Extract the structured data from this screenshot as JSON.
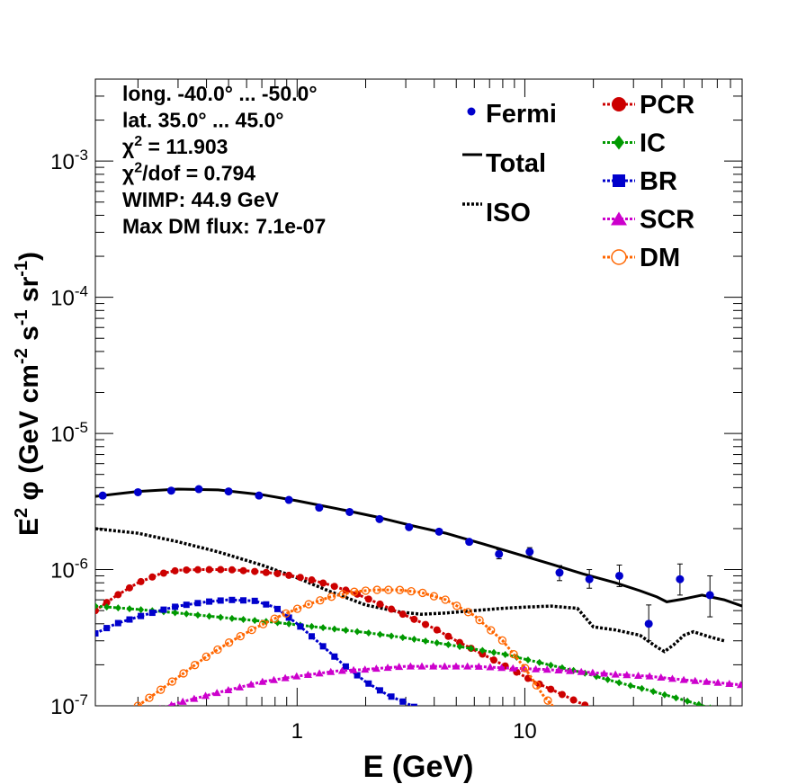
{
  "chart_data": {
    "type": "line",
    "xlabel": "E (GeV)",
    "ylabel_parts": [
      "E",
      "2",
      " φ (GeV cm",
      "-2",
      " s",
      "-1",
      " sr",
      "-1",
      ")"
    ],
    "x_scale": "log",
    "y_scale": "log",
    "xlim": [
      0.13,
      90
    ],
    "ylim": [
      1e-07,
      0.004
    ],
    "x_ticks": [
      {
        "value": 1,
        "label": "1"
      },
      {
        "value": 10,
        "label": "10"
      }
    ],
    "y_ticks": [
      {
        "value": 1e-07,
        "base": "10",
        "exp": "-7"
      },
      {
        "value": 1e-06,
        "base": "10",
        "exp": "-6"
      },
      {
        "value": 1e-05,
        "base": "10",
        "exp": "-5"
      },
      {
        "value": 0.0001,
        "base": "10",
        "exp": "-4"
      },
      {
        "value": 0.001,
        "base": "10",
        "exp": "-3"
      }
    ],
    "info_lines": [
      {
        "text": "long. -40.0° ... -50.0°"
      },
      {
        "text": "lat. 35.0° ... 45.0°"
      },
      {
        "pre": "χ",
        "sup": "2",
        "text": " = 11.903"
      },
      {
        "pre": "χ",
        "sup": "2",
        "text": "/dof = 0.794"
      },
      {
        "text": "WIMP: 44.9 GeV"
      },
      {
        "text": "Max DM flux: 7.1e-07"
      }
    ],
    "legend": [
      {
        "name": "Fermi",
        "color": "#0000cc",
        "marker": "dot",
        "line": "none"
      },
      {
        "name": "Total",
        "color": "#000000",
        "marker": "none",
        "line": "solid"
      },
      {
        "name": "ISO",
        "color": "#000000",
        "marker": "none",
        "line": "dotted"
      },
      {
        "name": "PCR",
        "color": "#cc0000",
        "marker": "circle",
        "line": "dotted"
      },
      {
        "name": "IC",
        "color": "#009900",
        "marker": "diamond",
        "line": "dotted"
      },
      {
        "name": "BR",
        "color": "#0000cc",
        "marker": "square",
        "line": "dotted"
      },
      {
        "name": "SCR",
        "color": "#cc00cc",
        "marker": "triangle",
        "line": "dotted"
      },
      {
        "name": "DM",
        "color": "#ff6600",
        "marker": "open-circle",
        "line": "dotted"
      }
    ],
    "fermi": {
      "x": [
        0.14,
        0.2,
        0.28,
        0.37,
        0.5,
        0.68,
        0.92,
        1.25,
        1.7,
        2.3,
        3.1,
        4.2,
        5.7,
        7.7,
        10.5,
        14.2,
        19.2,
        26,
        35,
        48,
        65
      ],
      "y": [
        3.5e-06,
        3.7e-06,
        3.8e-06,
        3.9e-06,
        3.75e-06,
        3.5e-06,
        3.25e-06,
        2.85e-06,
        2.65e-06,
        2.35e-06,
        2.05e-06,
        1.9e-06,
        1.6e-06,
        1.3e-06,
        1.35e-06,
        9.5e-07,
        8.5e-07,
        9e-07,
        4e-07,
        8.5e-07,
        6.5e-07
      ],
      "err_lo": [
        0,
        0,
        0,
        0,
        0,
        0,
        0,
        0,
        0,
        0,
        0,
        0,
        0,
        1e-07,
        1e-07,
        1.2e-07,
        1.2e-07,
        1.5e-07,
        1e-07,
        2e-07,
        2e-07
      ],
      "err_hi": [
        0,
        0,
        0,
        0,
        0,
        0,
        0,
        0,
        0,
        0,
        0,
        0,
        0,
        1e-07,
        1e-07,
        1.2e-07,
        1.5e-07,
        1.8e-07,
        1.5e-07,
        2.5e-07,
        2.5e-07
      ]
    },
    "total": {
      "x": [
        0.13,
        0.2,
        0.3,
        0.45,
        0.7,
        1.0,
        1.5,
        2.2,
        3.2,
        4.5,
        6.5,
        9,
        13,
        18,
        25,
        32,
        38,
        42,
        50,
        60,
        75,
        90
      ],
      "y": [
        3.45e-06,
        3.75e-06,
        3.9e-06,
        3.85e-06,
        3.55e-06,
        3.2e-06,
        2.8e-06,
        2.45e-06,
        2.1e-06,
        1.85e-06,
        1.55e-06,
        1.32e-06,
        1.1e-06,
        9.3e-07,
        8e-07,
        7e-07,
        6.3e-07,
        5.8e-07,
        6.1e-07,
        6.5e-07,
        6e-07,
        5.4e-07
      ]
    },
    "iso": {
      "x": [
        0.13,
        0.2,
        0.3,
        0.45,
        0.7,
        1.0,
        1.4,
        2.0,
        2.8,
        3.5,
        4.5,
        6,
        8,
        10,
        13,
        17,
        20,
        25,
        32,
        38,
        41,
        45,
        50,
        55,
        65,
        75
      ],
      "y": [
        2e-06,
        1.85e-06,
        1.6e-06,
        1.35e-06,
        1.08e-06,
        8.7e-07,
        6.9e-07,
        5.5e-07,
        4.9e-07,
        4.7e-07,
        4.8e-07,
        5e-07,
        5.2e-07,
        5.3e-07,
        5.4e-07,
        5.2e-07,
        3.8e-07,
        3.6e-07,
        3.3e-07,
        2.7e-07,
        2.5e-07,
        2.8e-07,
        3.3e-07,
        3.5e-07,
        3.2e-07,
        3e-07
      ]
    },
    "series": [
      {
        "name": "PCR",
        "x": [
          0.13,
          0.16,
          0.2,
          0.25,
          0.3,
          0.38,
          0.5,
          0.65,
          0.85,
          1.1,
          1.4,
          1.8,
          2.3,
          3.0,
          4.0,
          5.0,
          6.5,
          8.5,
          11,
          14,
          17,
          20
        ],
        "y": [
          5e-07,
          6.4e-07,
          8e-07,
          9.3e-07,
          9.9e-07,
          1e-06,
          1e-06,
          9.7e-07,
          9.3e-07,
          8.6e-07,
          7.7e-07,
          6.7e-07,
          5.6e-07,
          4.6e-07,
          3.7e-07,
          3e-07,
          2.4e-07,
          1.9e-07,
          1.5e-07,
          1.25e-07,
          1.07e-07,
          9.5e-08
        ]
      },
      {
        "name": "IC",
        "x": [
          0.13,
          0.2,
          0.3,
          0.5,
          0.8,
          1.2,
          2,
          3,
          5,
          8,
          12,
          18,
          25,
          35,
          50,
          70,
          90
        ],
        "y": [
          5.4e-07,
          5.1e-07,
          4.8e-07,
          4.4e-07,
          4.1e-07,
          3.8e-07,
          3.45e-07,
          3.15e-07,
          2.75e-07,
          2.4e-07,
          2.05e-07,
          1.75e-07,
          1.5e-07,
          1.3e-07,
          1.1e-07,
          9.3e-08,
          8e-08
        ]
      },
      {
        "name": "BR",
        "x": [
          0.13,
          0.16,
          0.2,
          0.25,
          0.3,
          0.4,
          0.5,
          0.65,
          0.8,
          1.0,
          1.25,
          1.6,
          2.0,
          2.5,
          3.0,
          3.5,
          4.5
        ],
        "y": [
          3.4e-07,
          4e-07,
          4.5e-07,
          5e-07,
          5.4e-07,
          5.8e-07,
          6e-07,
          5.9e-07,
          5.3e-07,
          4e-07,
          2.9e-07,
          2e-07,
          1.5e-07,
          1.2e-07,
          1.05e-07,
          9.3e-08,
          8e-08
        ]
      },
      {
        "name": "SCR",
        "x": [
          0.25,
          0.3,
          0.45,
          0.7,
          1.0,
          1.5,
          2.0,
          3.0,
          4.0,
          6.0,
          8.0,
          12,
          16,
          25,
          35,
          50,
          70,
          90
        ],
        "y": [
          9.5e-08,
          1.05e-07,
          1.25e-07,
          1.5e-07,
          1.65e-07,
          1.8e-07,
          1.85e-07,
          1.95e-07,
          1.95e-07,
          1.95e-07,
          1.9e-07,
          1.85e-07,
          1.8e-07,
          1.7e-07,
          1.65e-07,
          1.55e-07,
          1.48e-07,
          1.42e-07
        ]
      },
      {
        "name": "DM",
        "x": [
          0.2,
          0.25,
          0.32,
          0.4,
          0.5,
          0.65,
          0.85,
          1.1,
          1.4,
          1.8,
          2.2,
          2.8,
          3.5,
          4.5,
          6,
          8,
          10,
          12,
          14
        ],
        "y": [
          1e-07,
          1.3e-07,
          1.75e-07,
          2.3e-07,
          2.9e-07,
          3.7e-07,
          4.6e-07,
          5.5e-07,
          6.3e-07,
          6.9e-07,
          7.1e-07,
          7.1e-07,
          6.8e-07,
          6e-07,
          4.6e-07,
          3e-07,
          1.9e-07,
          1.2e-07,
          9e-08
        ]
      }
    ]
  }
}
